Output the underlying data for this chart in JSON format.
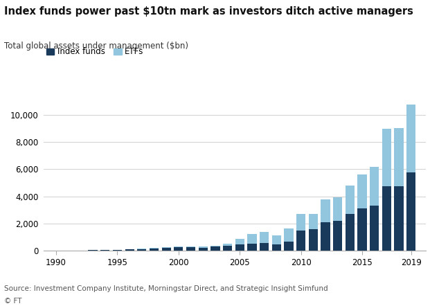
{
  "title": "Index funds power past $10tn mark as investors ditch active managers",
  "subtitle": "Total global assets under management ($bn)",
  "legend_labels": [
    "Index funds",
    "ETFs"
  ],
  "colors": {
    "index_funds": "#1a3a5c",
    "etfs": "#92c5de",
    "background": "#ffffff",
    "grid": "#d0d0d0",
    "spine": "#aaaaaa"
  },
  "years": [
    1990,
    1991,
    1992,
    1993,
    1994,
    1995,
    1996,
    1997,
    1998,
    1999,
    2000,
    2001,
    2002,
    2003,
    2004,
    2005,
    2006,
    2007,
    2008,
    2009,
    2010,
    2011,
    2012,
    2013,
    2014,
    2015,
    2016,
    2017,
    2018,
    2019
  ],
  "index_funds": [
    30,
    35,
    45,
    60,
    65,
    80,
    110,
    145,
    200,
    250,
    280,
    260,
    250,
    310,
    380,
    460,
    540,
    600,
    480,
    680,
    1500,
    1600,
    2100,
    2200,
    2700,
    3100,
    3300,
    4750,
    4750,
    5750
  ],
  "etfs": [
    2,
    2,
    2,
    3,
    3,
    5,
    10,
    15,
    25,
    40,
    65,
    65,
    70,
    90,
    150,
    420,
    680,
    800,
    650,
    950,
    1200,
    1100,
    1700,
    1750,
    2100,
    2500,
    2850,
    4200,
    4250,
    5000
  ],
  "ylim": [
    0,
    11000
  ],
  "yticks": [
    0,
    2000,
    4000,
    6000,
    8000,
    10000
  ],
  "xtick_labels": [
    "1990",
    "1995",
    "2000",
    "2005",
    "2010",
    "2015",
    "2019"
  ],
  "xtick_positions": [
    1990,
    1995,
    2000,
    2005,
    2010,
    2015,
    2019
  ],
  "source": "Source: Investment Company Institute, Morningstar Direct, and Strategic Insight Simfund",
  "copyright": "© FT",
  "bar_width": 0.75
}
